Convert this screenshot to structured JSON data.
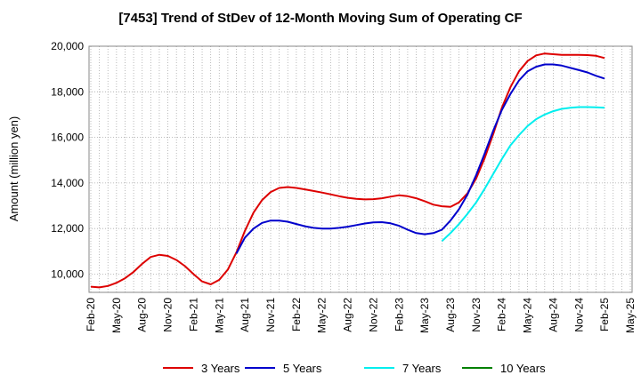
{
  "chart_data": {
    "type": "line",
    "title": "[7453]  Trend of StDev of 12-Month Moving Sum of Operating CF",
    "ylabel": "Amount (million yen)",
    "xlabel": "",
    "ylim": [
      9200,
      20000
    ],
    "yticks": [
      10000,
      12000,
      14000,
      16000,
      18000,
      20000
    ],
    "ytick_labels": [
      "10,000",
      "12,000",
      "14,000",
      "16,000",
      "18,000",
      "20,000"
    ],
    "xtick_labels": [
      "Feb-20",
      "May-20",
      "Aug-20",
      "Nov-20",
      "Feb-21",
      "May-21",
      "Aug-21",
      "Nov-21",
      "Feb-22",
      "May-22",
      "Aug-22",
      "Nov-22",
      "Feb-23",
      "May-23",
      "Aug-23",
      "Nov-23",
      "Feb-24",
      "May-24",
      "Aug-24",
      "Nov-24",
      "Feb-25",
      "May-25"
    ],
    "x_start": "2020-02",
    "x_end": "2025-05",
    "grid": true,
    "legend_position": "bottom",
    "series": [
      {
        "name": "3 Years",
        "color": "#dd0000",
        "start": "2020-02",
        "values": [
          9450,
          9420,
          9480,
          9620,
          9820,
          10100,
          10450,
          10750,
          10850,
          10800,
          10620,
          10350,
          10000,
          9680,
          9550,
          9750,
          10200,
          10950,
          11900,
          12700,
          13250,
          13600,
          13780,
          13820,
          13780,
          13720,
          13650,
          13580,
          13500,
          13420,
          13350,
          13300,
          13280,
          13290,
          13330,
          13400,
          13460,
          13420,
          13330,
          13200,
          13050,
          12980,
          12950,
          13150,
          13550,
          14200,
          15100,
          16150,
          17300,
          18200,
          18900,
          19350,
          19600,
          19680,
          19650,
          19620,
          19620,
          19620,
          19610,
          19580,
          19480
        ]
      },
      {
        "name": "5 Years",
        "color": "#0000cc",
        "start": "2021-07",
        "values": [
          10900,
          11600,
          12000,
          12250,
          12350,
          12350,
          12300,
          12200,
          12100,
          12030,
          12000,
          12000,
          12030,
          12080,
          12150,
          12220,
          12270,
          12280,
          12230,
          12120,
          11950,
          11800,
          11750,
          11800,
          11950,
          12350,
          12850,
          13500,
          14350,
          15300,
          16300,
          17200,
          17900,
          18500,
          18900,
          19100,
          19200,
          19200,
          19150,
          19050,
          18950,
          18850,
          18700,
          18580
        ]
      },
      {
        "name": "7 Years",
        "color": "#00eeee",
        "start": "2023-07",
        "values": [
          11450,
          11800,
          12200,
          12650,
          13150,
          13750,
          14400,
          15050,
          15650,
          16100,
          16500,
          16800,
          17000,
          17150,
          17250,
          17300,
          17330,
          17330,
          17320,
          17300
        ]
      },
      {
        "name": "10 Years",
        "color": "#008000",
        "start": "2023-07",
        "values": []
      }
    ]
  }
}
